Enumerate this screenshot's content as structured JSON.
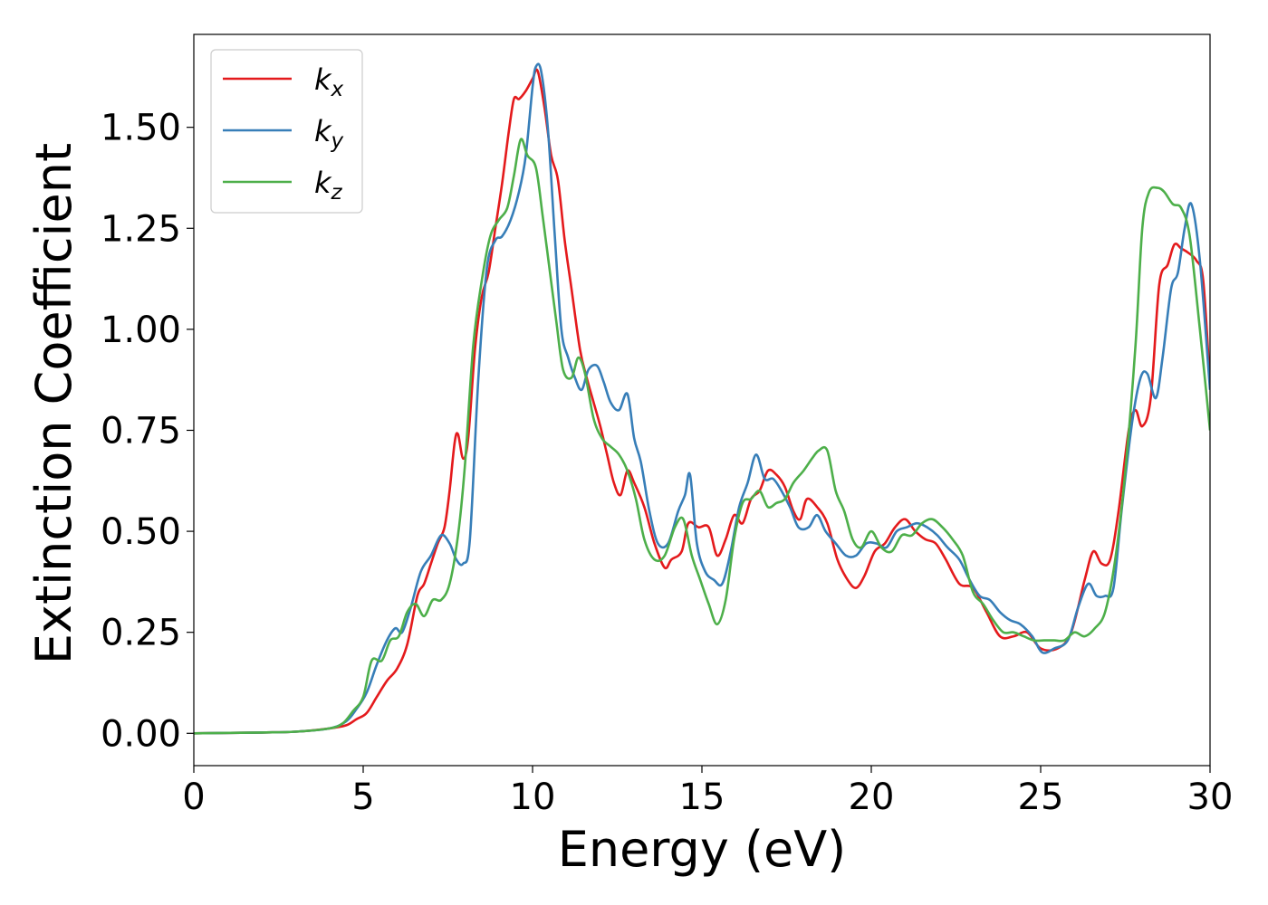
{
  "chart_data": {
    "type": "line",
    "title": "",
    "xlabel": "Energy (eV)",
    "ylabel": "Extinction Coefficient",
    "xlim": [
      0,
      30
    ],
    "ylim": [
      -0.08,
      1.73
    ],
    "xticks": [
      "0",
      "5",
      "10",
      "15",
      "20",
      "25",
      "30"
    ],
    "yticks": [
      "0.00",
      "0.25",
      "0.50",
      "0.75",
      "1.00",
      "1.25",
      "1.50"
    ],
    "grid": false,
    "legend_position": "top-left",
    "series": [
      {
        "name": "k",
        "subscript": "x",
        "color": "#e41a1c",
        "points": [
          [
            0,
            0
          ],
          [
            2,
            0.002
          ],
          [
            3,
            0.004
          ],
          [
            4,
            0.012
          ],
          [
            4.5,
            0.02
          ],
          [
            4.8,
            0.035
          ],
          [
            5.1,
            0.05
          ],
          [
            5.4,
            0.09
          ],
          [
            5.7,
            0.13
          ],
          [
            6.0,
            0.16
          ],
          [
            6.3,
            0.22
          ],
          [
            6.6,
            0.34
          ],
          [
            6.8,
            0.37
          ],
          [
            7.0,
            0.42
          ],
          [
            7.2,
            0.47
          ],
          [
            7.4,
            0.51
          ],
          [
            7.55,
            0.6
          ],
          [
            7.7,
            0.72
          ],
          [
            7.8,
            0.74
          ],
          [
            7.95,
            0.68
          ],
          [
            8.1,
            0.73
          ],
          [
            8.3,
            0.95
          ],
          [
            8.5,
            1.08
          ],
          [
            8.7,
            1.14
          ],
          [
            8.9,
            1.25
          ],
          [
            9.1,
            1.36
          ],
          [
            9.3,
            1.49
          ],
          [
            9.45,
            1.57
          ],
          [
            9.6,
            1.57
          ],
          [
            9.8,
            1.59
          ],
          [
            10.0,
            1.62
          ],
          [
            10.15,
            1.64
          ],
          [
            10.35,
            1.55
          ],
          [
            10.55,
            1.43
          ],
          [
            10.75,
            1.37
          ],
          [
            10.95,
            1.22
          ],
          [
            11.15,
            1.1
          ],
          [
            11.4,
            0.95
          ],
          [
            11.6,
            0.88
          ],
          [
            11.8,
            0.82
          ],
          [
            12.0,
            0.76
          ],
          [
            12.2,
            0.69
          ],
          [
            12.4,
            0.62
          ],
          [
            12.6,
            0.59
          ],
          [
            12.8,
            0.65
          ],
          [
            13.0,
            0.62
          ],
          [
            13.3,
            0.56
          ],
          [
            13.6,
            0.47
          ],
          [
            13.9,
            0.41
          ],
          [
            14.1,
            0.43
          ],
          [
            14.4,
            0.45
          ],
          [
            14.6,
            0.52
          ],
          [
            14.9,
            0.51
          ],
          [
            15.2,
            0.51
          ],
          [
            15.45,
            0.44
          ],
          [
            15.7,
            0.48
          ],
          [
            15.95,
            0.54
          ],
          [
            16.2,
            0.52
          ],
          [
            16.45,
            0.58
          ],
          [
            16.7,
            0.6
          ],
          [
            16.95,
            0.65
          ],
          [
            17.2,
            0.64
          ],
          [
            17.45,
            0.61
          ],
          [
            17.7,
            0.55
          ],
          [
            17.9,
            0.53
          ],
          [
            18.1,
            0.58
          ],
          [
            18.4,
            0.56
          ],
          [
            18.7,
            0.52
          ],
          [
            19.0,
            0.43
          ],
          [
            19.3,
            0.38
          ],
          [
            19.55,
            0.36
          ],
          [
            19.8,
            0.39
          ],
          [
            20.1,
            0.45
          ],
          [
            20.4,
            0.47
          ],
          [
            20.7,
            0.51
          ],
          [
            21.0,
            0.53
          ],
          [
            21.3,
            0.5
          ],
          [
            21.6,
            0.48
          ],
          [
            21.9,
            0.47
          ],
          [
            22.2,
            0.43
          ],
          [
            22.6,
            0.37
          ],
          [
            23.0,
            0.36
          ],
          [
            23.4,
            0.3
          ],
          [
            23.8,
            0.24
          ],
          [
            24.2,
            0.24
          ],
          [
            24.6,
            0.25
          ],
          [
            25.0,
            0.21
          ],
          [
            25.5,
            0.21
          ],
          [
            25.9,
            0.25
          ],
          [
            26.3,
            0.38
          ],
          [
            26.55,
            0.45
          ],
          [
            26.8,
            0.42
          ],
          [
            27.05,
            0.43
          ],
          [
            27.3,
            0.55
          ],
          [
            27.6,
            0.75
          ],
          [
            27.8,
            0.8
          ],
          [
            28.0,
            0.76
          ],
          [
            28.25,
            0.83
          ],
          [
            28.5,
            1.11
          ],
          [
            28.75,
            1.16
          ],
          [
            28.95,
            1.21
          ],
          [
            29.15,
            1.2
          ],
          [
            29.35,
            1.19
          ],
          [
            29.6,
            1.17
          ],
          [
            29.8,
            1.12
          ],
          [
            30.0,
            0.86
          ]
        ]
      },
      {
        "name": "k",
        "subscript": "y",
        "color": "#377eb8",
        "points": [
          [
            0,
            0
          ],
          [
            2,
            0.002
          ],
          [
            3,
            0.004
          ],
          [
            4,
            0.012
          ],
          [
            4.5,
            0.03
          ],
          [
            4.8,
            0.06
          ],
          [
            5.1,
            0.1
          ],
          [
            5.4,
            0.17
          ],
          [
            5.7,
            0.23
          ],
          [
            5.95,
            0.26
          ],
          [
            6.15,
            0.25
          ],
          [
            6.4,
            0.31
          ],
          [
            6.7,
            0.4
          ],
          [
            7.0,
            0.44
          ],
          [
            7.3,
            0.49
          ],
          [
            7.55,
            0.47
          ],
          [
            7.75,
            0.43
          ],
          [
            7.95,
            0.42
          ],
          [
            8.15,
            0.48
          ],
          [
            8.4,
            0.88
          ],
          [
            8.65,
            1.15
          ],
          [
            8.9,
            1.22
          ],
          [
            9.1,
            1.23
          ],
          [
            9.35,
            1.27
          ],
          [
            9.6,
            1.34
          ],
          [
            9.8,
            1.43
          ],
          [
            10.0,
            1.6
          ],
          [
            10.1,
            1.65
          ],
          [
            10.25,
            1.64
          ],
          [
            10.45,
            1.5
          ],
          [
            10.65,
            1.24
          ],
          [
            10.85,
            1.0
          ],
          [
            11.05,
            0.93
          ],
          [
            11.25,
            0.88
          ],
          [
            11.45,
            0.85
          ],
          [
            11.65,
            0.9
          ],
          [
            11.9,
            0.91
          ],
          [
            12.1,
            0.87
          ],
          [
            12.3,
            0.82
          ],
          [
            12.55,
            0.8
          ],
          [
            12.8,
            0.84
          ],
          [
            13.0,
            0.73
          ],
          [
            13.2,
            0.67
          ],
          [
            13.45,
            0.55
          ],
          [
            13.7,
            0.47
          ],
          [
            14.0,
            0.47
          ],
          [
            14.3,
            0.55
          ],
          [
            14.5,
            0.59
          ],
          [
            14.65,
            0.64
          ],
          [
            14.85,
            0.47
          ],
          [
            15.1,
            0.4
          ],
          [
            15.35,
            0.38
          ],
          [
            15.6,
            0.37
          ],
          [
            15.85,
            0.45
          ],
          [
            16.1,
            0.56
          ],
          [
            16.35,
            0.62
          ],
          [
            16.6,
            0.69
          ],
          [
            16.85,
            0.63
          ],
          [
            17.1,
            0.63
          ],
          [
            17.35,
            0.6
          ],
          [
            17.6,
            0.56
          ],
          [
            17.85,
            0.51
          ],
          [
            18.15,
            0.51
          ],
          [
            18.4,
            0.54
          ],
          [
            18.65,
            0.5
          ],
          [
            18.95,
            0.47
          ],
          [
            19.25,
            0.44
          ],
          [
            19.55,
            0.44
          ],
          [
            19.85,
            0.47
          ],
          [
            20.15,
            0.47
          ],
          [
            20.45,
            0.46
          ],
          [
            20.75,
            0.5
          ],
          [
            21.05,
            0.51
          ],
          [
            21.35,
            0.52
          ],
          [
            21.65,
            0.51
          ],
          [
            21.95,
            0.49
          ],
          [
            22.25,
            0.46
          ],
          [
            22.6,
            0.43
          ],
          [
            22.9,
            0.38
          ],
          [
            23.2,
            0.34
          ],
          [
            23.5,
            0.33
          ],
          [
            23.8,
            0.3
          ],
          [
            24.1,
            0.28
          ],
          [
            24.4,
            0.27
          ],
          [
            24.75,
            0.24
          ],
          [
            25.05,
            0.2
          ],
          [
            25.4,
            0.21
          ],
          [
            25.8,
            0.23
          ],
          [
            26.1,
            0.31
          ],
          [
            26.4,
            0.37
          ],
          [
            26.65,
            0.34
          ],
          [
            26.9,
            0.34
          ],
          [
            27.15,
            0.36
          ],
          [
            27.4,
            0.56
          ],
          [
            27.7,
            0.77
          ],
          [
            27.95,
            0.88
          ],
          [
            28.15,
            0.89
          ],
          [
            28.4,
            0.83
          ],
          [
            28.6,
            0.93
          ],
          [
            28.85,
            1.1
          ],
          [
            29.05,
            1.14
          ],
          [
            29.25,
            1.25
          ],
          [
            29.45,
            1.31
          ],
          [
            29.7,
            1.17
          ],
          [
            30.0,
            0.85
          ]
        ]
      },
      {
        "name": "k",
        "subscript": "z",
        "color": "#4daf4a",
        "points": [
          [
            0,
            0
          ],
          [
            2,
            0.002
          ],
          [
            3,
            0.004
          ],
          [
            4,
            0.012
          ],
          [
            4.4,
            0.025
          ],
          [
            4.7,
            0.055
          ],
          [
            5.0,
            0.09
          ],
          [
            5.25,
            0.18
          ],
          [
            5.55,
            0.18
          ],
          [
            5.8,
            0.23
          ],
          [
            6.05,
            0.24
          ],
          [
            6.3,
            0.3
          ],
          [
            6.55,
            0.32
          ],
          [
            6.8,
            0.29
          ],
          [
            7.05,
            0.33
          ],
          [
            7.3,
            0.33
          ],
          [
            7.55,
            0.37
          ],
          [
            7.8,
            0.49
          ],
          [
            8.0,
            0.66
          ],
          [
            8.25,
            0.96
          ],
          [
            8.5,
            1.12
          ],
          [
            8.75,
            1.23
          ],
          [
            9.0,
            1.27
          ],
          [
            9.25,
            1.3
          ],
          [
            9.45,
            1.38
          ],
          [
            9.65,
            1.47
          ],
          [
            9.85,
            1.43
          ],
          [
            10.1,
            1.4
          ],
          [
            10.3,
            1.28
          ],
          [
            10.5,
            1.15
          ],
          [
            10.7,
            1.02
          ],
          [
            10.9,
            0.9
          ],
          [
            11.15,
            0.88
          ],
          [
            11.35,
            0.93
          ],
          [
            11.55,
            0.89
          ],
          [
            11.8,
            0.78
          ],
          [
            12.05,
            0.73
          ],
          [
            12.3,
            0.71
          ],
          [
            12.55,
            0.69
          ],
          [
            12.8,
            0.65
          ],
          [
            13.05,
            0.58
          ],
          [
            13.3,
            0.48
          ],
          [
            13.6,
            0.43
          ],
          [
            13.9,
            0.44
          ],
          [
            14.2,
            0.51
          ],
          [
            14.45,
            0.53
          ],
          [
            14.7,
            0.44
          ],
          [
            14.95,
            0.38
          ],
          [
            15.2,
            0.32
          ],
          [
            15.45,
            0.27
          ],
          [
            15.7,
            0.33
          ],
          [
            15.95,
            0.48
          ],
          [
            16.2,
            0.57
          ],
          [
            16.45,
            0.58
          ],
          [
            16.7,
            0.6
          ],
          [
            16.95,
            0.56
          ],
          [
            17.2,
            0.57
          ],
          [
            17.45,
            0.58
          ],
          [
            17.7,
            0.62
          ],
          [
            18.0,
            0.65
          ],
          [
            18.25,
            0.68
          ],
          [
            18.45,
            0.7
          ],
          [
            18.7,
            0.7
          ],
          [
            18.95,
            0.6
          ],
          [
            19.2,
            0.55
          ],
          [
            19.45,
            0.48
          ],
          [
            19.7,
            0.46
          ],
          [
            20.0,
            0.5
          ],
          [
            20.3,
            0.46
          ],
          [
            20.6,
            0.45
          ],
          [
            20.9,
            0.49
          ],
          [
            21.2,
            0.49
          ],
          [
            21.5,
            0.52
          ],
          [
            21.8,
            0.53
          ],
          [
            22.1,
            0.51
          ],
          [
            22.4,
            0.48
          ],
          [
            22.7,
            0.44
          ],
          [
            23.0,
            0.35
          ],
          [
            23.3,
            0.32
          ],
          [
            23.6,
            0.28
          ],
          [
            23.9,
            0.25
          ],
          [
            24.2,
            0.25
          ],
          [
            24.5,
            0.24
          ],
          [
            24.8,
            0.23
          ],
          [
            25.1,
            0.23
          ],
          [
            25.4,
            0.23
          ],
          [
            25.7,
            0.23
          ],
          [
            26.0,
            0.25
          ],
          [
            26.3,
            0.24
          ],
          [
            26.6,
            0.26
          ],
          [
            26.9,
            0.3
          ],
          [
            27.2,
            0.43
          ],
          [
            27.5,
            0.65
          ],
          [
            27.8,
            0.96
          ],
          [
            28.0,
            1.25
          ],
          [
            28.2,
            1.34
          ],
          [
            28.45,
            1.35
          ],
          [
            28.65,
            1.34
          ],
          [
            28.9,
            1.31
          ],
          [
            29.15,
            1.3
          ],
          [
            29.4,
            1.23
          ],
          [
            29.7,
            1.0
          ],
          [
            30.0,
            0.75
          ]
        ]
      }
    ]
  }
}
